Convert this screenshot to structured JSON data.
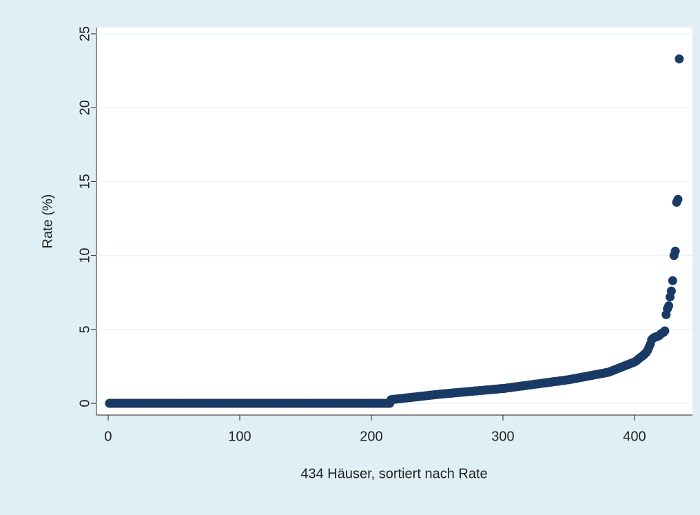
{
  "chart_data": {
    "type": "scatter",
    "x_label": "434 Häuser, sortiert nach Rate",
    "y_label": "Rate (%)",
    "color": "#1a3a66",
    "grid": true,
    "xlim": [
      -8.9,
      444
    ],
    "ylim": [
      -0.79,
      25.42
    ],
    "xticks": [
      0,
      100,
      200,
      300,
      400
    ],
    "yticks": [
      0,
      5,
      10,
      15,
      20,
      25
    ],
    "x": [
      1,
      2,
      3,
      4,
      5,
      6,
      7,
      8,
      9,
      10,
      11,
      12,
      13,
      14,
      15,
      16,
      17,
      18,
      19,
      20,
      21,
      22,
      23,
      24,
      25,
      26,
      27,
      28,
      29,
      30,
      31,
      32,
      33,
      34,
      35,
      36,
      37,
      38,
      39,
      40,
      41,
      42,
      43,
      44,
      45,
      46,
      47,
      48,
      49,
      50,
      51,
      52,
      53,
      54,
      55,
      56,
      57,
      58,
      59,
      60,
      61,
      62,
      63,
      64,
      65,
      66,
      67,
      68,
      69,
      70,
      71,
      72,
      73,
      74,
      75,
      76,
      77,
      78,
      79,
      80,
      81,
      82,
      83,
      84,
      85,
      86,
      87,
      88,
      89,
      90,
      91,
      92,
      93,
      94,
      95,
      96,
      97,
      98,
      99,
      100,
      101,
      102,
      103,
      104,
      105,
      106,
      107,
      108,
      109,
      110,
      111,
      112,
      113,
      114,
      115,
      116,
      117,
      118,
      119,
      120,
      121,
      122,
      123,
      124,
      125,
      126,
      127,
      128,
      129,
      130,
      131,
      132,
      133,
      134,
      135,
      136,
      137,
      138,
      139,
      140,
      141,
      142,
      143,
      144,
      145,
      146,
      147,
      148,
      149,
      150,
      151,
      152,
      153,
      154,
      155,
      156,
      157,
      158,
      159,
      160,
      161,
      162,
      163,
      164,
      165,
      166,
      167,
      168,
      169,
      170,
      171,
      172,
      173,
      174,
      175,
      176,
      177,
      178,
      179,
      180,
      181,
      182,
      183,
      184,
      185,
      186,
      187,
      188,
      189,
      190,
      191,
      192,
      193,
      194,
      195,
      196,
      197,
      198,
      199,
      200,
      201,
      202,
      203,
      204,
      205,
      206,
      207,
      208,
      209,
      210,
      211,
      212,
      213,
      214,
      215,
      216,
      217,
      218,
      219,
      220,
      221,
      222,
      223,
      224,
      225,
      226,
      227,
      228,
      229,
      230,
      231,
      232,
      233,
      234,
      235,
      236,
      237,
      238,
      239,
      240,
      241,
      242,
      243,
      244,
      245,
      246,
      247,
      248,
      249,
      250,
      251,
      252,
      253,
      254,
      255,
      256,
      257,
      258,
      259,
      260,
      261,
      262,
      263,
      264,
      265,
      266,
      267,
      268,
      269,
      270,
      271,
      272,
      273,
      274,
      275,
      276,
      277,
      278,
      279,
      280,
      281,
      282,
      283,
      284,
      285,
      286,
      287,
      288,
      289,
      290,
      291,
      292,
      293,
      294,
      295,
      296,
      297,
      298,
      299,
      300,
      301,
      302,
      303,
      304,
      305,
      306,
      307,
      308,
      309,
      310,
      311,
      312,
      313,
      314,
      315,
      316,
      317,
      318,
      319,
      320,
      321,
      322,
      323,
      324,
      325,
      326,
      327,
      328,
      329,
      330,
      331,
      332,
      333,
      334,
      335,
      336,
      337,
      338,
      339,
      340,
      341,
      342,
      343,
      344,
      345,
      346,
      347,
      348,
      349,
      350,
      351,
      352,
      353,
      354,
      355,
      356,
      357,
      358,
      359,
      360,
      361,
      362,
      363,
      364,
      365,
      366,
      367,
      368,
      369,
      370,
      371,
      372,
      373,
      374,
      375,
      376,
      377,
      378,
      379,
      380,
      381,
      382,
      383,
      384,
      385,
      386,
      387,
      388,
      389,
      390,
      391,
      392,
      393,
      394,
      395,
      396,
      397,
      398,
      399,
      400,
      401,
      402,
      403,
      404,
      405,
      406,
      407,
      408,
      409,
      410,
      411,
      412,
      413,
      414,
      415,
      416,
      417,
      418,
      419,
      420,
      421,
      422,
      423,
      424,
      425,
      426,
      427,
      428,
      429,
      430,
      431,
      432,
      433,
      434
    ],
    "y": [
      0,
      0,
      0,
      0,
      0,
      0,
      0,
      0,
      0,
      0,
      0,
      0,
      0,
      0,
      0,
      0,
      0,
      0,
      0,
      0,
      0,
      0,
      0,
      0,
      0,
      0,
      0,
      0,
      0,
      0,
      0,
      0,
      0,
      0,
      0,
      0,
      0,
      0,
      0,
      0,
      0,
      0,
      0,
      0,
      0,
      0,
      0,
      0,
      0,
      0,
      0,
      0,
      0,
      0,
      0,
      0,
      0,
      0,
      0,
      0,
      0,
      0,
      0,
      0,
      0,
      0,
      0,
      0,
      0,
      0,
      0,
      0,
      0,
      0,
      0,
      0,
      0,
      0,
      0,
      0,
      0,
      0,
      0,
      0,
      0,
      0,
      0,
      0,
      0,
      0,
      0,
      0,
      0,
      0,
      0,
      0,
      0,
      0,
      0,
      0,
      0,
      0,
      0,
      0,
      0,
      0,
      0,
      0,
      0,
      0,
      0,
      0,
      0,
      0,
      0,
      0,
      0,
      0,
      0,
      0,
      0,
      0,
      0,
      0,
      0,
      0,
      0,
      0,
      0,
      0,
      0,
      0,
      0,
      0,
      0,
      0,
      0,
      0,
      0,
      0,
      0,
      0,
      0,
      0,
      0,
      0,
      0,
      0,
      0,
      0,
      0,
      0,
      0,
      0,
      0,
      0,
      0,
      0,
      0,
      0,
      0,
      0,
      0,
      0,
      0,
      0,
      0,
      0,
      0,
      0,
      0,
      0,
      0,
      0,
      0,
      0,
      0,
      0,
      0,
      0,
      0,
      0,
      0,
      0,
      0,
      0,
      0,
      0,
      0,
      0,
      0,
      0,
      0,
      0,
      0,
      0,
      0,
      0,
      0,
      0,
      0,
      0,
      0,
      0,
      0,
      0,
      0,
      0,
      0,
      0,
      0,
      0,
      0,
      0,
      0.25,
      0.26,
      0.27,
      0.28,
      0.29,
      0.3,
      0.31,
      0.32,
      0.33,
      0.34,
      0.35,
      0.36,
      0.37,
      0.38,
      0.39,
      0.4,
      0.41,
      0.42,
      0.43,
      0.44,
      0.45,
      0.46,
      0.47,
      0.48,
      0.49,
      0.5,
      0.51,
      0.52,
      0.53,
      0.54,
      0.55,
      0.56,
      0.57,
      0.58,
      0.59,
      0.6,
      0.61,
      0.62,
      0.63,
      0.63,
      0.64,
      0.65,
      0.66,
      0.67,
      0.68,
      0.68,
      0.69,
      0.7,
      0.71,
      0.72,
      0.72,
      0.73,
      0.74,
      0.75,
      0.76,
      0.76,
      0.77,
      0.78,
      0.79,
      0.8,
      0.8,
      0.81,
      0.82,
      0.83,
      0.84,
      0.84,
      0.85,
      0.86,
      0.87,
      0.88,
      0.88,
      0.89,
      0.9,
      0.91,
      0.92,
      0.92,
      0.93,
      0.94,
      0.95,
      0.96,
      0.96,
      0.97,
      0.98,
      0.99,
      1.0,
      1.0,
      1.01,
      1.02,
      1.04,
      1.05,
      1.06,
      1.07,
      1.08,
      1.1,
      1.11,
      1.12,
      1.13,
      1.14,
      1.16,
      1.17,
      1.18,
      1.19,
      1.2,
      1.22,
      1.23,
      1.24,
      1.25,
      1.26,
      1.28,
      1.29,
      1.3,
      1.31,
      1.32,
      1.34,
      1.35,
      1.36,
      1.37,
      1.38,
      1.4,
      1.41,
      1.42,
      1.43,
      1.44,
      1.46,
      1.47,
      1.48,
      1.49,
      1.5,
      1.52,
      1.53,
      1.54,
      1.55,
      1.56,
      1.58,
      1.59,
      1.6,
      1.62,
      1.63,
      1.65,
      1.67,
      1.68,
      1.7,
      1.72,
      1.73,
      1.75,
      1.77,
      1.78,
      1.8,
      1.82,
      1.83,
      1.85,
      1.87,
      1.88,
      1.9,
      1.92,
      1.93,
      1.95,
      1.97,
      1.98,
      2.0,
      2.02,
      2.03,
      2.05,
      2.07,
      2.08,
      2.1,
      2.13,
      2.17,
      2.2,
      2.24,
      2.27,
      2.31,
      2.34,
      2.38,
      2.41,
      2.45,
      2.48,
      2.52,
      2.55,
      2.59,
      2.62,
      2.66,
      2.69,
      2.73,
      2.76,
      2.8,
      2.85,
      2.92,
      3.0,
      3.07,
      3.14,
      3.2,
      3.28,
      3.36,
      3.45,
      3.6,
      3.8,
      4.0,
      4.3,
      4.4,
      4.45,
      4.5,
      4.5,
      4.55,
      4.6,
      4.7,
      4.75,
      4.8,
      4.9,
      6.0,
      6.4,
      6.6,
      7.2,
      7.6,
      8.3,
      10.0,
      10.3,
      13.6,
      13.8,
      23.3
    ]
  }
}
